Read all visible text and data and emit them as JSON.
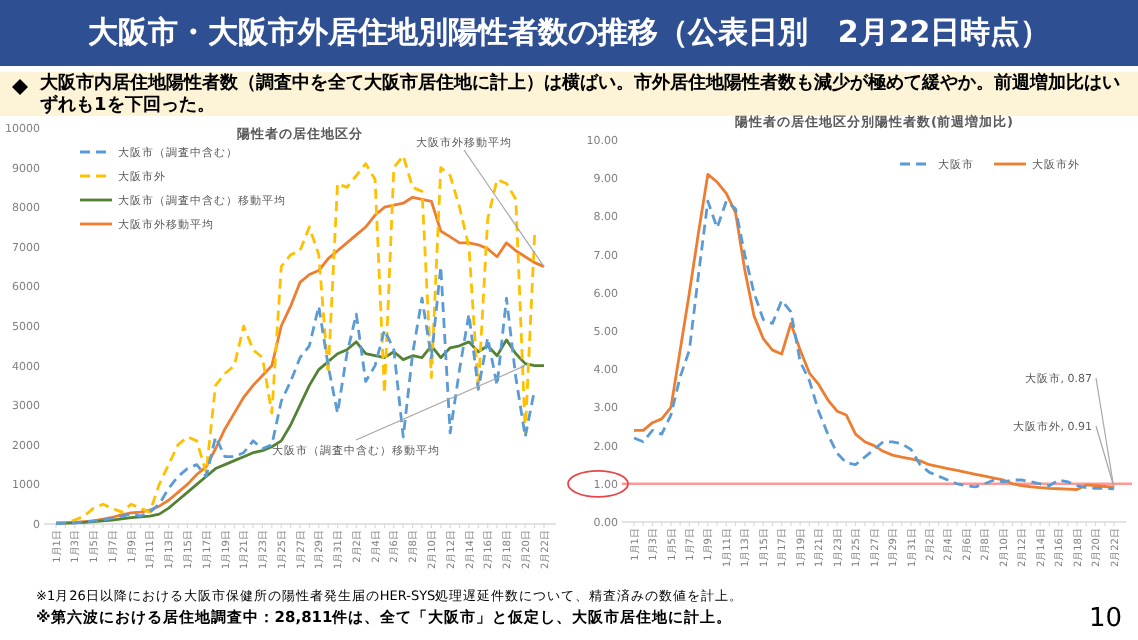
{
  "chart_data": [
    {
      "type": "other",
      "title": "大阪市・大阪市外居住地別陽性者数の推移（公表日別　2月22日時点）",
      "subtitle": "大阪市内居住地陽性者数（調査中を全て大阪市居住地に計上）は横ばい。市外居住地陽性者数も減少が極めて緩やか。前週増加比はいずれも1を下回った。",
      "annotations": [
        "※1月26日以降における大阪市保健所の陽性者発生届のHER-SYS処理遅延件数について、精査済みの数値を計上。",
        "※第六波における居住地調査中：28,811件は、全て「大阪市」と仮定し、大阪市居住地に計上。",
        "10"
      ]
    },
    {
      "type": "line",
      "title": "陽性者の居住地区分",
      "legend": "top left",
      "categories": [
        "1月1日",
        null,
        "1月3日",
        null,
        "1月5日",
        null,
        "1月7日",
        null,
        "1月9日",
        null,
        "1月11日",
        null,
        "1月13日",
        null,
        "1月15日",
        null,
        "1月17日",
        null,
        "1月19日",
        null,
        "1月21日",
        null,
        "1月23日",
        null,
        "1月25日",
        null,
        "1月27日",
        null,
        "1月29日",
        null,
        "1月31日",
        null,
        "2月2日",
        null,
        "2月4日",
        null,
        "2月6日",
        null,
        "2月8日",
        null,
        "2月10日",
        null,
        "2月12日",
        null,
        "2月14日",
        null,
        "2月16日",
        null,
        "2月18日",
        null,
        "2月20日",
        null,
        "2月22日"
      ],
      "ylim": [
        0,
        10000
      ],
      "yticks": [
        0,
        1000,
        2000,
        3000,
        4000,
        5000,
        6000,
        7000,
        8000,
        9000,
        10000
      ],
      "series": [
        {
          "name": "大阪市（調査中含む）",
          "color": "#5b9bd5",
          "line_style": "dashed",
          "values": [
            10,
            20,
            30,
            50,
            80,
            100,
            150,
            200,
            250,
            200,
            300,
            500,
            900,
            1200,
            1400,
            1500,
            1200,
            2200,
            1700,
            1700,
            1800,
            2100,
            1900,
            2000,
            3100,
            3600,
            4200,
            4500,
            5500,
            4000,
            2800,
            4300,
            5300,
            3600,
            4000,
            4900,
            4400,
            2200,
            4300,
            5700,
            4200,
            6500,
            2300,
            3900,
            5300,
            3400,
            4700,
            3500,
            5700,
            3700,
            2200,
            3400,
            null
          ]
        },
        {
          "name": "大阪市外",
          "color": "#ffc000",
          "line_style": "dashed",
          "values": [
            20,
            30,
            100,
            200,
            400,
            500,
            400,
            300,
            500,
            400,
            300,
            1000,
            1500,
            2000,
            2200,
            2100,
            1300,
            3500,
            3800,
            4000,
            5000,
            4400,
            4200,
            2800,
            6500,
            6800,
            6900,
            7500,
            6800,
            3800,
            8600,
            8500,
            8800,
            9100,
            8700,
            3300,
            9000,
            9300,
            8500,
            8400,
            3700,
            9000,
            8800,
            8000,
            7000,
            3400,
            7700,
            8700,
            8600,
            8200,
            2300,
            7300,
            null
          ]
        },
        {
          "name": "大阪市（調査中含む）移動平均",
          "color": "#548235",
          "line_style": "solid",
          "values": [
            20,
            20,
            30,
            40,
            60,
            80,
            100,
            130,
            160,
            180,
            200,
            250,
            400,
            600,
            800,
            1000,
            1200,
            1400,
            1500,
            1600,
            1700,
            1800,
            1850,
            1950,
            2100,
            2500,
            3000,
            3500,
            3900,
            4100,
            4300,
            4400,
            4600,
            4300,
            4250,
            4200,
            4350,
            4150,
            4250,
            4200,
            4500,
            4200,
            4450,
            4500,
            4600,
            4350,
            4500,
            4250,
            4650,
            4300,
            4050,
            4000,
            4000
          ]
        },
        {
          "name": "大阪市外移動平均",
          "color": "#ed7d31",
          "line_style": "solid",
          "values": [
            30,
            30,
            40,
            60,
            80,
            120,
            170,
            230,
            280,
            300,
            350,
            450,
            600,
            800,
            1000,
            1250,
            1450,
            1900,
            2400,
            2800,
            3200,
            3500,
            3750,
            4000,
            5000,
            5500,
            6100,
            6300,
            6400,
            6700,
            6900,
            7100,
            7300,
            7500,
            7800,
            8000,
            8050,
            8100,
            8250,
            8200,
            8150,
            7400,
            7250,
            7100,
            7100,
            7050,
            6950,
            6750,
            7100,
            6900,
            6750,
            6600,
            6500
          ]
        }
      ],
      "annotations": [
        {
          "text": "大阪市外移動平均",
          "x": "2月22日",
          "y": 6500
        },
        {
          "text": "大阪市（調査中含む）移動平均",
          "x": "2月20日",
          "y": 4000
        }
      ]
    },
    {
      "type": "line",
      "title": "陽性者の居住地区分別陽性者数(前週増加比)",
      "legend": "top right",
      "categories": [
        "1月1日",
        null,
        "1月3日",
        null,
        "1月5日",
        null,
        "1月7日",
        null,
        "1月9日",
        null,
        "1月11日",
        null,
        "1月13日",
        null,
        "1月15日",
        null,
        "1月17日",
        null,
        "1月19日",
        null,
        "1月21日",
        null,
        "1月23日",
        null,
        "1月25日",
        null,
        "1月27日",
        null,
        "1月29日",
        null,
        "1月31日",
        null,
        "2月2日",
        null,
        "2月4日",
        null,
        "2月6日",
        null,
        "2月8日",
        null,
        "2月10日",
        null,
        "2月12日",
        null,
        "2月14日",
        null,
        "2月16日",
        null,
        "2月18日",
        null,
        "2月20日",
        null,
        "2月22日"
      ],
      "ylim": [
        0,
        10
      ],
      "yticks": [
        {
          "value": 0,
          "label": "0.00"
        },
        {
          "value": 1,
          "label": "1.00"
        },
        {
          "value": 2,
          "label": "2.00"
        },
        {
          "value": 3,
          "label": "3.00"
        },
        {
          "value": 4,
          "label": "4.00"
        },
        {
          "value": 5,
          "label": "5.00"
        },
        {
          "value": 6,
          "label": "6.00"
        },
        {
          "value": 7,
          "label": "7.00"
        },
        {
          "value": 8,
          "label": "8.00"
        },
        {
          "value": 9,
          "label": "9.00"
        },
        {
          "value": 10,
          "label": "10.00"
        }
      ],
      "series": [
        {
          "name": "大阪市",
          "color": "#5b9bd5",
          "line_style": "dashed",
          "values": [
            2.2,
            2.1,
            2.4,
            2.3,
            2.8,
            3.8,
            4.5,
            6.5,
            8.4,
            7.7,
            8.4,
            8.2,
            7.0,
            6.0,
            5.3,
            5.2,
            5.8,
            5.5,
            4.2,
            3.7,
            2.9,
            2.3,
            1.8,
            1.55,
            1.5,
            1.7,
            1.9,
            2.1,
            2.1,
            2.05,
            1.9,
            1.5,
            1.3,
            1.2,
            1.1,
            1.0,
            0.95,
            0.92,
            1.0,
            1.1,
            1.05,
            1.1,
            1.1,
            1.05,
            1.0,
            0.95,
            1.1,
            1.05,
            0.95,
            0.9,
            0.88,
            0.88,
            0.87
          ]
        },
        {
          "name": "大阪市外",
          "color": "#ed7d31",
          "line_style": "solid",
          "values": [
            2.4,
            2.4,
            2.6,
            2.7,
            3.0,
            4.5,
            6.0,
            7.6,
            9.1,
            8.9,
            8.6,
            8.1,
            6.6,
            5.4,
            4.8,
            4.5,
            4.4,
            5.2,
            4.5,
            3.9,
            3.6,
            3.2,
            2.9,
            2.8,
            2.3,
            2.1,
            2.0,
            1.85,
            1.75,
            1.7,
            1.65,
            1.6,
            1.5,
            1.45,
            1.4,
            1.35,
            1.3,
            1.25,
            1.2,
            1.15,
            1.1,
            1.0,
            0.95,
            0.92,
            0.9,
            0.88,
            0.87,
            0.86,
            0.85,
            0.97,
            0.95,
            0.93,
            0.91
          ]
        }
      ],
      "ref_lines": [
        {
          "axis": "y",
          "value": 1,
          "color": "#ff9999"
        }
      ],
      "annotations": [
        {
          "text": "大阪市, 0.87",
          "x": "2月22日",
          "y": 0.87
        },
        {
          "text": "大阪市外, 0.91",
          "x": "2月22日",
          "y": 0.91
        }
      ]
    }
  ]
}
